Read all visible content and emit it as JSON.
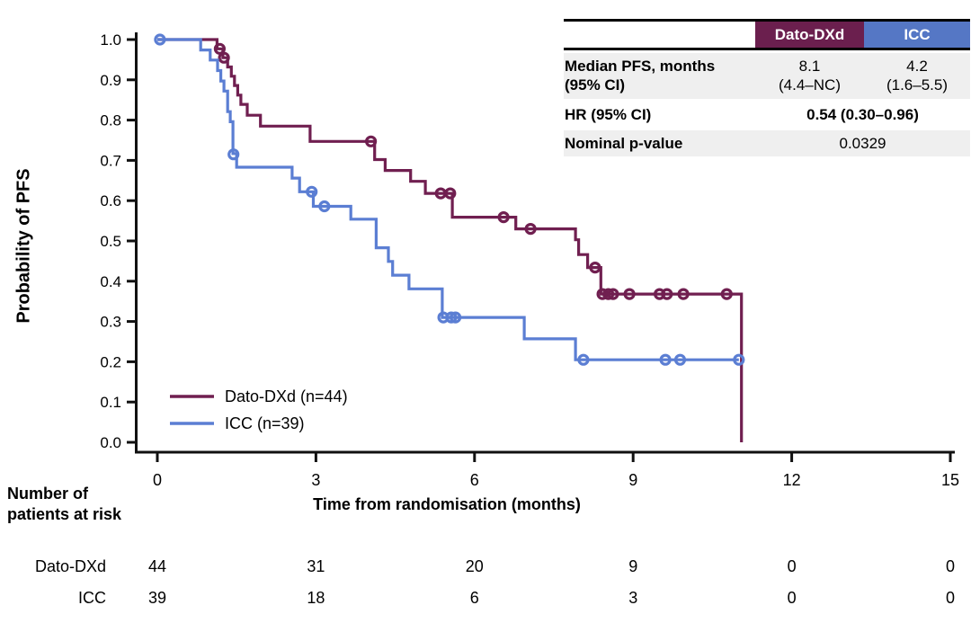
{
  "colors": {
    "dato_header": "#6B1F4E",
    "icc_header": "#5577C5",
    "row_bg": "#EFEFEF",
    "axis": "#111111"
  },
  "stats_table": {
    "columns": [
      "",
      "Dato-DXd",
      "ICC"
    ],
    "rows": [
      {
        "label_line1": "Median PFS, months",
        "label_line2": "(95% CI)",
        "dato_line1": "8.1",
        "dato_line2": "(4.4–NC)",
        "icc_line1": "4.2",
        "icc_line2": "(1.6–5.5)"
      },
      {
        "label": "HR (95% CI)",
        "value": "0.54 (0.30–0.96)"
      },
      {
        "label": "Nominal p-value",
        "value": "0.0329"
      }
    ]
  },
  "risk_table": {
    "title_line1": "Number of",
    "title_line2": "patients at risk",
    "rows": [
      {
        "label": "Dato-DXd",
        "counts": [
          "44",
          "31",
          "20",
          "9",
          "0",
          "0"
        ]
      },
      {
        "label": "ICC",
        "counts": [
          "39",
          "18",
          "6",
          "3",
          "0",
          "0"
        ]
      }
    ]
  },
  "chart_data": {
    "type": "line",
    "subtype": "kaplan-meier-step",
    "title": "",
    "xlabel": "Time from randomisation (months)",
    "ylabel": "Probability of PFS",
    "xlim": [
      0,
      15
    ],
    "xticks": [
      0,
      3,
      6,
      9,
      12,
      15
    ],
    "ylim": [
      0.0,
      1.0
    ],
    "yticks": [
      0.0,
      0.1,
      0.2,
      0.3,
      0.4,
      0.5,
      0.6,
      0.7,
      0.8,
      0.9,
      1.0
    ],
    "grid": false,
    "legend_position": "inside-lower-left",
    "series": [
      {
        "name": "Dato-DXd (n=44)",
        "color": "#701F50",
        "steps": [
          [
            0,
            1.0
          ],
          [
            1.13,
            0.977
          ],
          [
            1.24,
            0.955
          ],
          [
            1.33,
            0.932
          ],
          [
            1.4,
            0.909
          ],
          [
            1.46,
            0.886
          ],
          [
            1.52,
            0.862
          ],
          [
            1.58,
            0.839
          ],
          [
            1.7,
            0.812
          ],
          [
            1.95,
            0.785
          ],
          [
            2.89,
            0.747
          ],
          [
            4.11,
            0.702
          ],
          [
            4.31,
            0.675
          ],
          [
            4.79,
            0.648
          ],
          [
            5.07,
            0.618
          ],
          [
            5.58,
            0.559
          ],
          [
            6.78,
            0.53
          ],
          [
            7.91,
            0.503
          ],
          [
            7.97,
            0.466
          ],
          [
            8.14,
            0.434
          ],
          [
            8.39,
            0.368
          ]
        ],
        "drop_to_zero_at": 11.05,
        "censors": [
          [
            1.18,
            0.977
          ],
          [
            1.26,
            0.955
          ],
          [
            4.04,
            0.747
          ],
          [
            5.36,
            0.618
          ],
          [
            5.54,
            0.618
          ],
          [
            6.55,
            0.559
          ],
          [
            7.06,
            0.53
          ],
          [
            8.28,
            0.434
          ],
          [
            8.42,
            0.368
          ],
          [
            8.53,
            0.368
          ],
          [
            8.62,
            0.368
          ],
          [
            8.93,
            0.368
          ],
          [
            9.5,
            0.368
          ],
          [
            9.64,
            0.368
          ],
          [
            9.95,
            0.368
          ],
          [
            10.77,
            0.368
          ]
        ]
      },
      {
        "name": "ICC (n=39)",
        "color": "#5B7ED3",
        "steps": [
          [
            0,
            1.0
          ],
          [
            0.82,
            0.974
          ],
          [
            1.0,
            0.949
          ],
          [
            1.14,
            0.923
          ],
          [
            1.2,
            0.897
          ],
          [
            1.26,
            0.872
          ],
          [
            1.33,
            0.821
          ],
          [
            1.38,
            0.796
          ],
          [
            1.43,
            0.717
          ],
          [
            1.5,
            0.683
          ],
          [
            2.55,
            0.656
          ],
          [
            2.69,
            0.622
          ],
          [
            2.95,
            0.586
          ],
          [
            3.66,
            0.554
          ],
          [
            4.14,
            0.483
          ],
          [
            4.37,
            0.449
          ],
          [
            4.45,
            0.415
          ],
          [
            4.76,
            0.381
          ],
          [
            5.39,
            0.31
          ],
          [
            6.94,
            0.257
          ],
          [
            7.91,
            0.205
          ]
        ],
        "end_at": 11.0,
        "censors": [
          [
            0.05,
            1.0
          ],
          [
            1.44,
            0.715
          ],
          [
            2.92,
            0.622
          ],
          [
            3.16,
            0.586
          ],
          [
            5.41,
            0.31
          ],
          [
            5.56,
            0.31
          ],
          [
            5.64,
            0.31
          ],
          [
            8.06,
            0.205
          ],
          [
            9.61,
            0.205
          ],
          [
            9.89,
            0.205
          ],
          [
            11.0,
            0.205
          ]
        ]
      }
    ]
  }
}
